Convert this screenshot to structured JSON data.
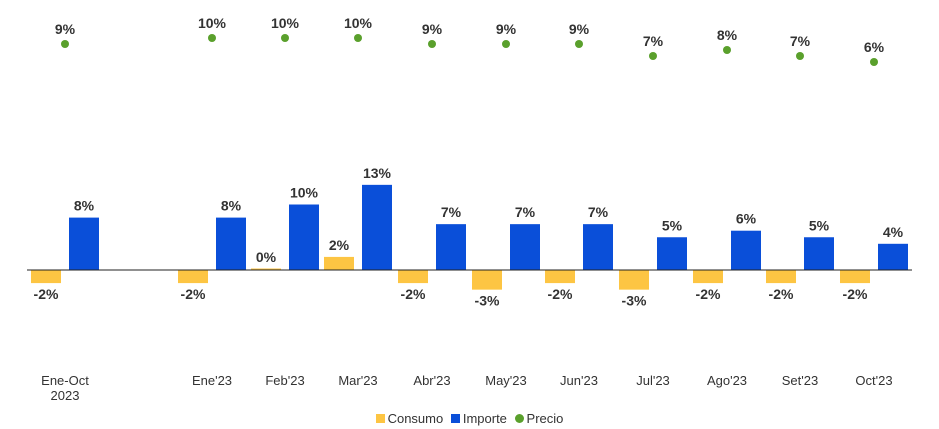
{
  "chart_data": {
    "type": "bar",
    "categories": [
      [
        "Ene-Oct",
        "2023"
      ],
      [
        "Ene'23"
      ],
      [
        "Feb'23"
      ],
      [
        "Mar'23"
      ],
      [
        "Abr'23"
      ],
      [
        "May'23"
      ],
      [
        "Jun'23"
      ],
      [
        "Jul'23"
      ],
      [
        "Ago'23"
      ],
      [
        "Set'23"
      ],
      [
        "Oct'23"
      ]
    ],
    "series": [
      {
        "name": "Consumo",
        "kind": "bar",
        "color": "#fdc543",
        "values": [
          -2,
          -2,
          0,
          2,
          -2,
          -3,
          -2,
          -3,
          -2,
          -2,
          -2
        ],
        "labels": [
          "-2%",
          "-2%",
          "0%",
          "2%",
          "-2%",
          "-3%",
          "-2%",
          "-3%",
          "-2%",
          "-2%",
          "-2%"
        ]
      },
      {
        "name": "Importe",
        "kind": "bar",
        "color": "#0a4fd9",
        "values": [
          8,
          8,
          10,
          13,
          7,
          7,
          7,
          5,
          6,
          5,
          4
        ],
        "labels": [
          "8%",
          "8%",
          "10%",
          "13%",
          "7%",
          "7%",
          "7%",
          "5%",
          "6%",
          "5%",
          "4%"
        ]
      },
      {
        "name": "Precio",
        "kind": "dot",
        "color": "#5aa02c",
        "values": [
          9,
          10,
          10,
          10,
          9,
          9,
          9,
          7,
          8,
          7,
          6
        ],
        "labels": [
          "9%",
          "10%",
          "10%",
          "10%",
          "9%",
          "9%",
          "9%",
          "7%",
          "8%",
          "7%",
          "6%"
        ]
      }
    ],
    "legend_position": "bottom",
    "grid": false,
    "title": "",
    "xlabel": "",
    "ylabel": ""
  },
  "legend": {
    "items": [
      {
        "label": "Consumo",
        "color": "#fdc543",
        "shape": "square"
      },
      {
        "label": "Importe",
        "color": "#0a4fd9",
        "shape": "square"
      },
      {
        "label": "Precio",
        "color": "#5aa02c",
        "shape": "circle"
      }
    ]
  }
}
